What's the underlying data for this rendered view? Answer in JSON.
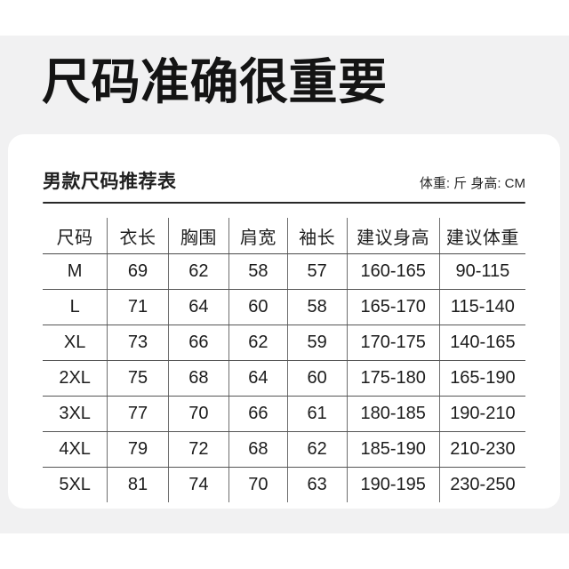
{
  "page_title": "尺码准确很重要",
  "panel": {
    "subtitle": "男款尺码推荐表",
    "units_label": "体重: 斤 身高: CM"
  },
  "chart_data": {
    "type": "table",
    "title": "男款尺码推荐表",
    "heading": "尺码准确很重要",
    "units_note": "体重: 斤 身高: CM",
    "columns": [
      "尺码",
      "衣长",
      "胸围",
      "肩宽",
      "袖长",
      "建议身高",
      "建议体重"
    ],
    "rows": [
      [
        "M",
        "69",
        "62",
        "58",
        "57",
        "160-165",
        "90-115"
      ],
      [
        "L",
        "71",
        "64",
        "60",
        "58",
        "165-170",
        "115-140"
      ],
      [
        "XL",
        "73",
        "66",
        "62",
        "59",
        "170-175",
        "140-165"
      ],
      [
        "2XL",
        "75",
        "68",
        "64",
        "60",
        "175-180",
        "165-190"
      ],
      [
        "3XL",
        "77",
        "70",
        "66",
        "61",
        "180-185",
        "190-210"
      ],
      [
        "4XL",
        "79",
        "72",
        "68",
        "62",
        "185-190",
        "210-230"
      ],
      [
        "5XL",
        "81",
        "74",
        "70",
        "63",
        "190-195",
        "230-250"
      ]
    ]
  },
  "colors": {
    "page_background": "#ffffff",
    "band_background": "#f1f1f2",
    "card_background": "#ffffff",
    "title_text": "#141414",
    "body_text": "#1c1c1c",
    "divider": "#282828",
    "row_line": "#555555",
    "column_line": "#6e6e6e"
  }
}
